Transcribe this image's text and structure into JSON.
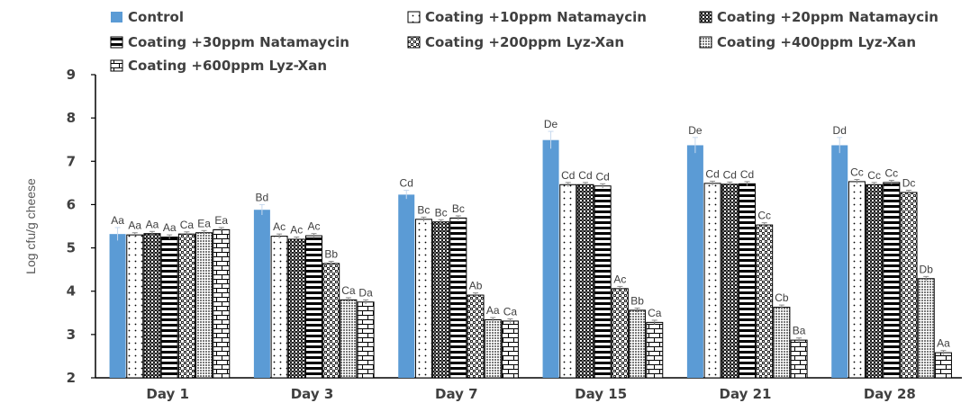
{
  "chart_data": {
    "type": "bar",
    "title": "",
    "xlabel": "",
    "ylabel": "Log cfu/g cheese",
    "ylim": [
      2,
      9
    ],
    "yticks": [
      "2",
      "3",
      "4",
      "5",
      "6",
      "7",
      "8",
      "9"
    ],
    "categories": [
      "Day 1",
      "Day 3",
      "Day 7",
      "Day 15",
      "Day 21",
      "Day 28"
    ],
    "legend_position": "top",
    "series": [
      {
        "name": "Control",
        "pattern": "solid",
        "color": "#5b9bd5",
        "values": [
          5.32,
          5.88,
          6.23,
          7.49,
          7.37,
          7.37
        ],
        "errors": [
          0.15,
          0.12,
          0.1,
          0.2,
          0.18,
          0.18
        ],
        "labels": [
          "Aa",
          "Bd",
          "Cd",
          "De",
          "De",
          "Dd"
        ]
      },
      {
        "name": "Coating +10ppm Natamaycin",
        "pattern": "dots",
        "values": [
          5.3,
          5.27,
          5.66,
          6.46,
          6.49,
          6.53
        ],
        "errors": [
          0.05,
          0.05,
          0.05,
          0.05,
          0.05,
          0.05
        ],
        "labels": [
          "Aa",
          "Ac",
          "Bc",
          "Cd",
          "Cd",
          "Cc"
        ]
      },
      {
        "name": "Coating +20ppm Natamaycin",
        "pattern": "crosshatch",
        "values": [
          5.33,
          5.2,
          5.6,
          6.46,
          6.47,
          6.46
        ],
        "errors": [
          0.05,
          0.05,
          0.05,
          0.05,
          0.05,
          0.05
        ],
        "labels": [
          "Aa",
          "Ac",
          "Bc",
          "Cd",
          "Cd",
          "Cc"
        ]
      },
      {
        "name": "Coating +30ppm Natamaycin",
        "pattern": "hstripes",
        "values": [
          5.25,
          5.28,
          5.69,
          6.43,
          6.48,
          6.51
        ],
        "errors": [
          0.05,
          0.05,
          0.05,
          0.05,
          0.05,
          0.05
        ],
        "labels": [
          "Aa",
          "Ac",
          "Bc",
          "Cd",
          "Cd",
          "Cc"
        ]
      },
      {
        "name": "Coating +200ppm Lyz-Xan",
        "pattern": "checker",
        "values": [
          5.32,
          4.64,
          3.91,
          4.06,
          5.53,
          6.28
        ],
        "errors": [
          0.05,
          0.05,
          0.05,
          0.05,
          0.05,
          0.05
        ],
        "labels": [
          "Ca",
          "Bb",
          "Ab",
          "Ac",
          "Cc",
          "Dc"
        ]
      },
      {
        "name": "Coating +400ppm Lyz-Xan",
        "pattern": "dense",
        "values": [
          5.35,
          3.8,
          3.34,
          3.56,
          3.63,
          4.29
        ],
        "errors": [
          0.05,
          0.05,
          0.05,
          0.05,
          0.05,
          0.05
        ],
        "labels": [
          "Ea",
          "Ca",
          "Aa",
          "Bb",
          "Cb",
          "Db"
        ]
      },
      {
        "name": "Coating +600ppm Lyz-Xan",
        "pattern": "brick",
        "values": [
          5.42,
          3.75,
          3.31,
          3.28,
          2.87,
          2.58
        ],
        "errors": [
          0.05,
          0.05,
          0.05,
          0.05,
          0.05,
          0.05
        ],
        "labels": [
          "Ea",
          "Da",
          "Ca",
          "Ca",
          "Ba",
          "Aa"
        ]
      }
    ]
  }
}
